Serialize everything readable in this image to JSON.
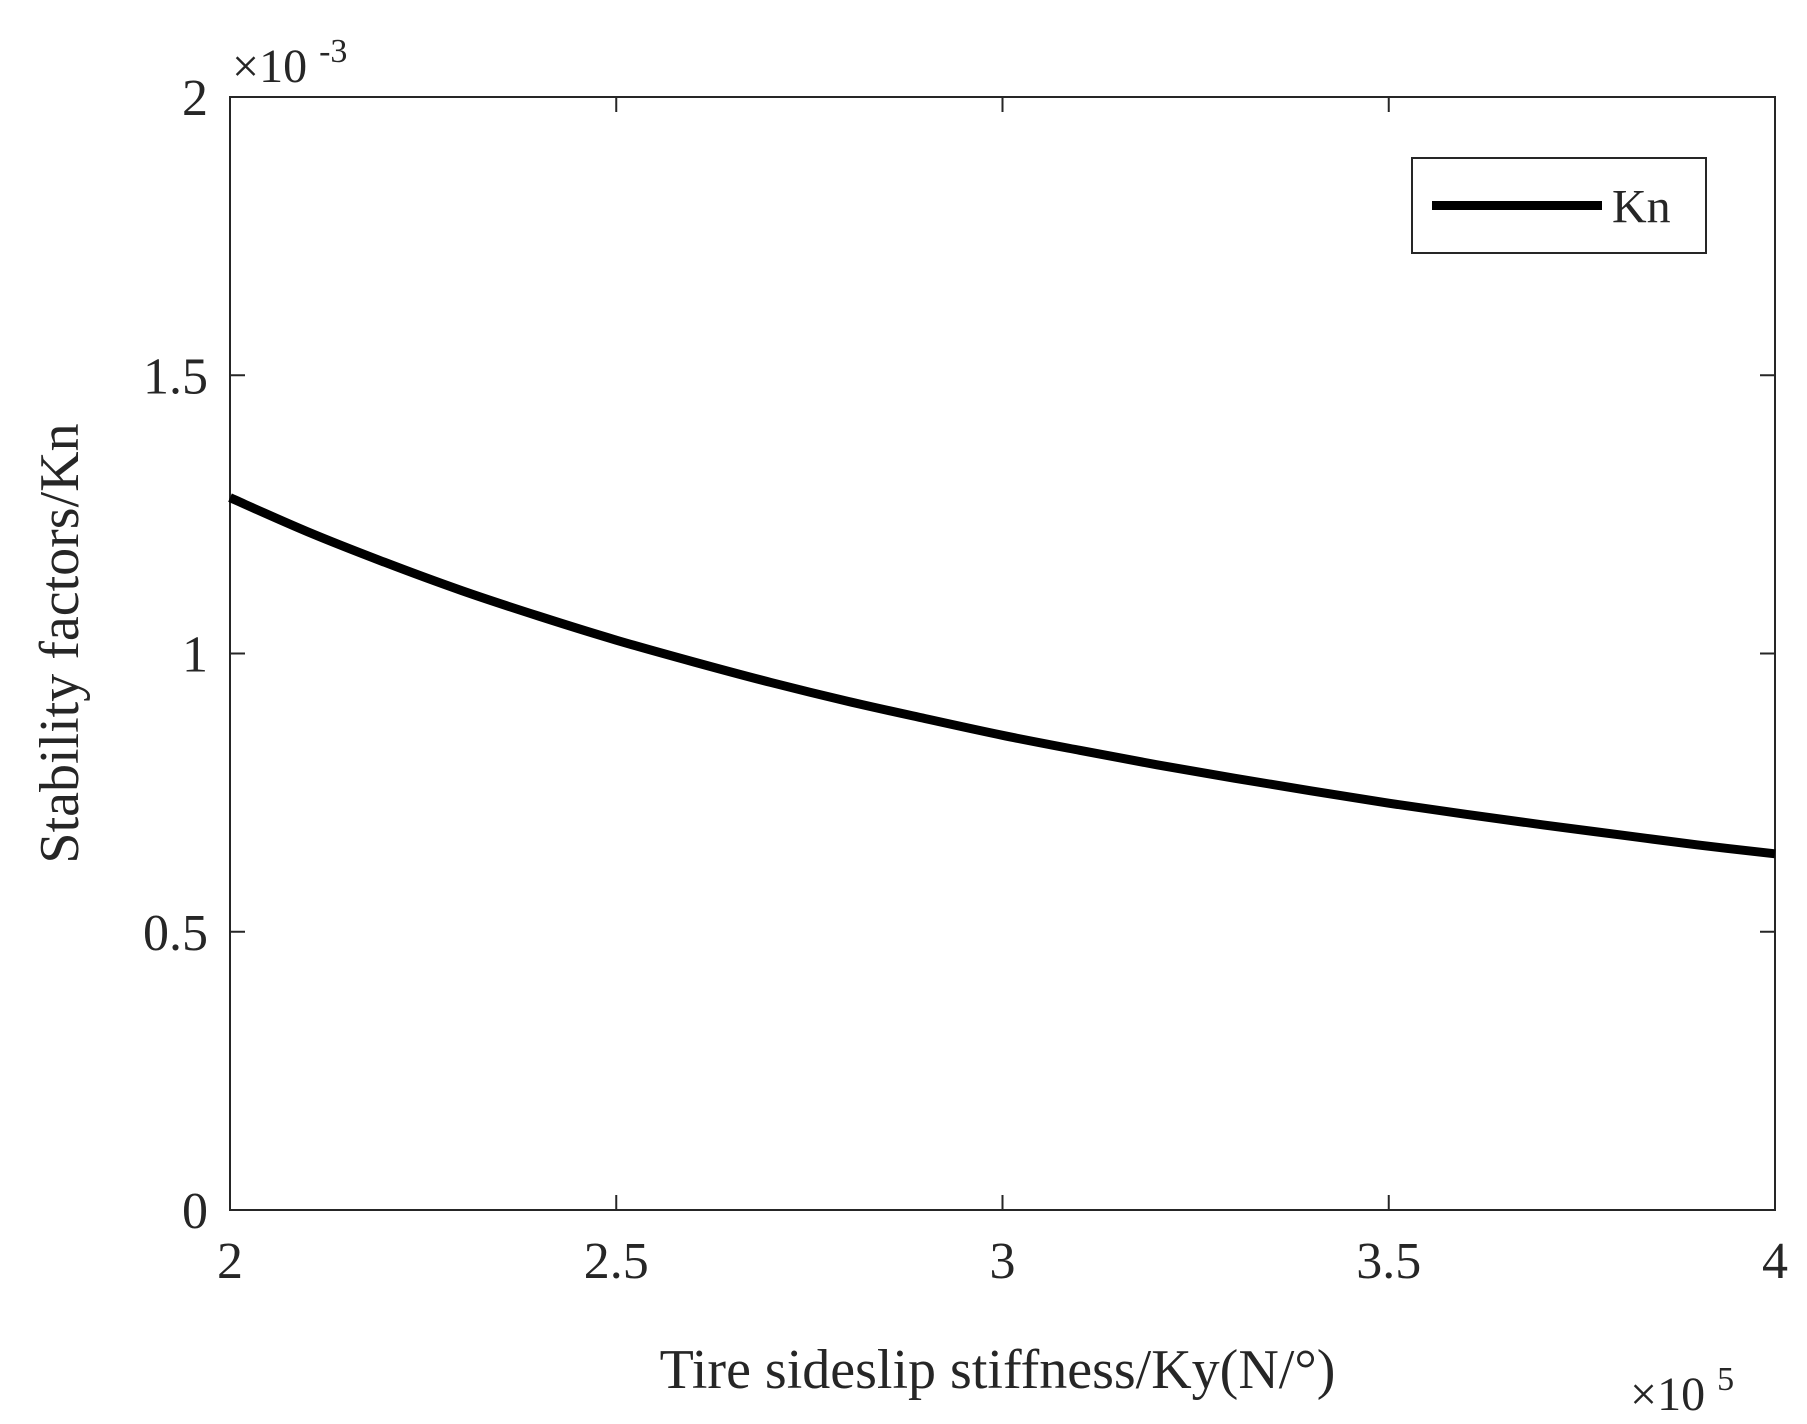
{
  "chart_data": {
    "type": "line",
    "title": "",
    "xlabel": "Tire sideslip stiffness/Ky(N/°)",
    "ylabel": "Stability factors/Kn",
    "x_multiplier": {
      "base": "×10",
      "exponent": "5"
    },
    "y_multiplier": {
      "base": "×10",
      "exponent": "-3"
    },
    "xlim": [
      2,
      4
    ],
    "ylim": [
      0,
      2
    ],
    "x_ticks": [
      2,
      2.5,
      3,
      3.5,
      4
    ],
    "x_tick_labels": [
      "2",
      "2.5",
      "3",
      "3.5",
      "4"
    ],
    "y_ticks": [
      0,
      0.5,
      1,
      1.5,
      2
    ],
    "y_tick_labels": [
      "0",
      "0.5",
      "1",
      "1.5",
      "2"
    ],
    "grid": false,
    "legend_position": "top-right",
    "series": [
      {
        "name": "Kn",
        "color": "#000000",
        "x": [
          2.0,
          2.1,
          2.2,
          2.3,
          2.4,
          2.5,
          2.6,
          2.7,
          2.8,
          2.9,
          3.0,
          3.1,
          3.2,
          3.3,
          3.4,
          3.5,
          3.6,
          3.7,
          3.8,
          3.9,
          4.0
        ],
        "y": [
          1.28,
          1.219,
          1.164,
          1.113,
          1.067,
          1.024,
          0.985,
          0.948,
          0.914,
          0.883,
          0.853,
          0.826,
          0.8,
          0.776,
          0.753,
          0.731,
          0.711,
          0.692,
          0.674,
          0.656,
          0.64
        ]
      }
    ]
  }
}
